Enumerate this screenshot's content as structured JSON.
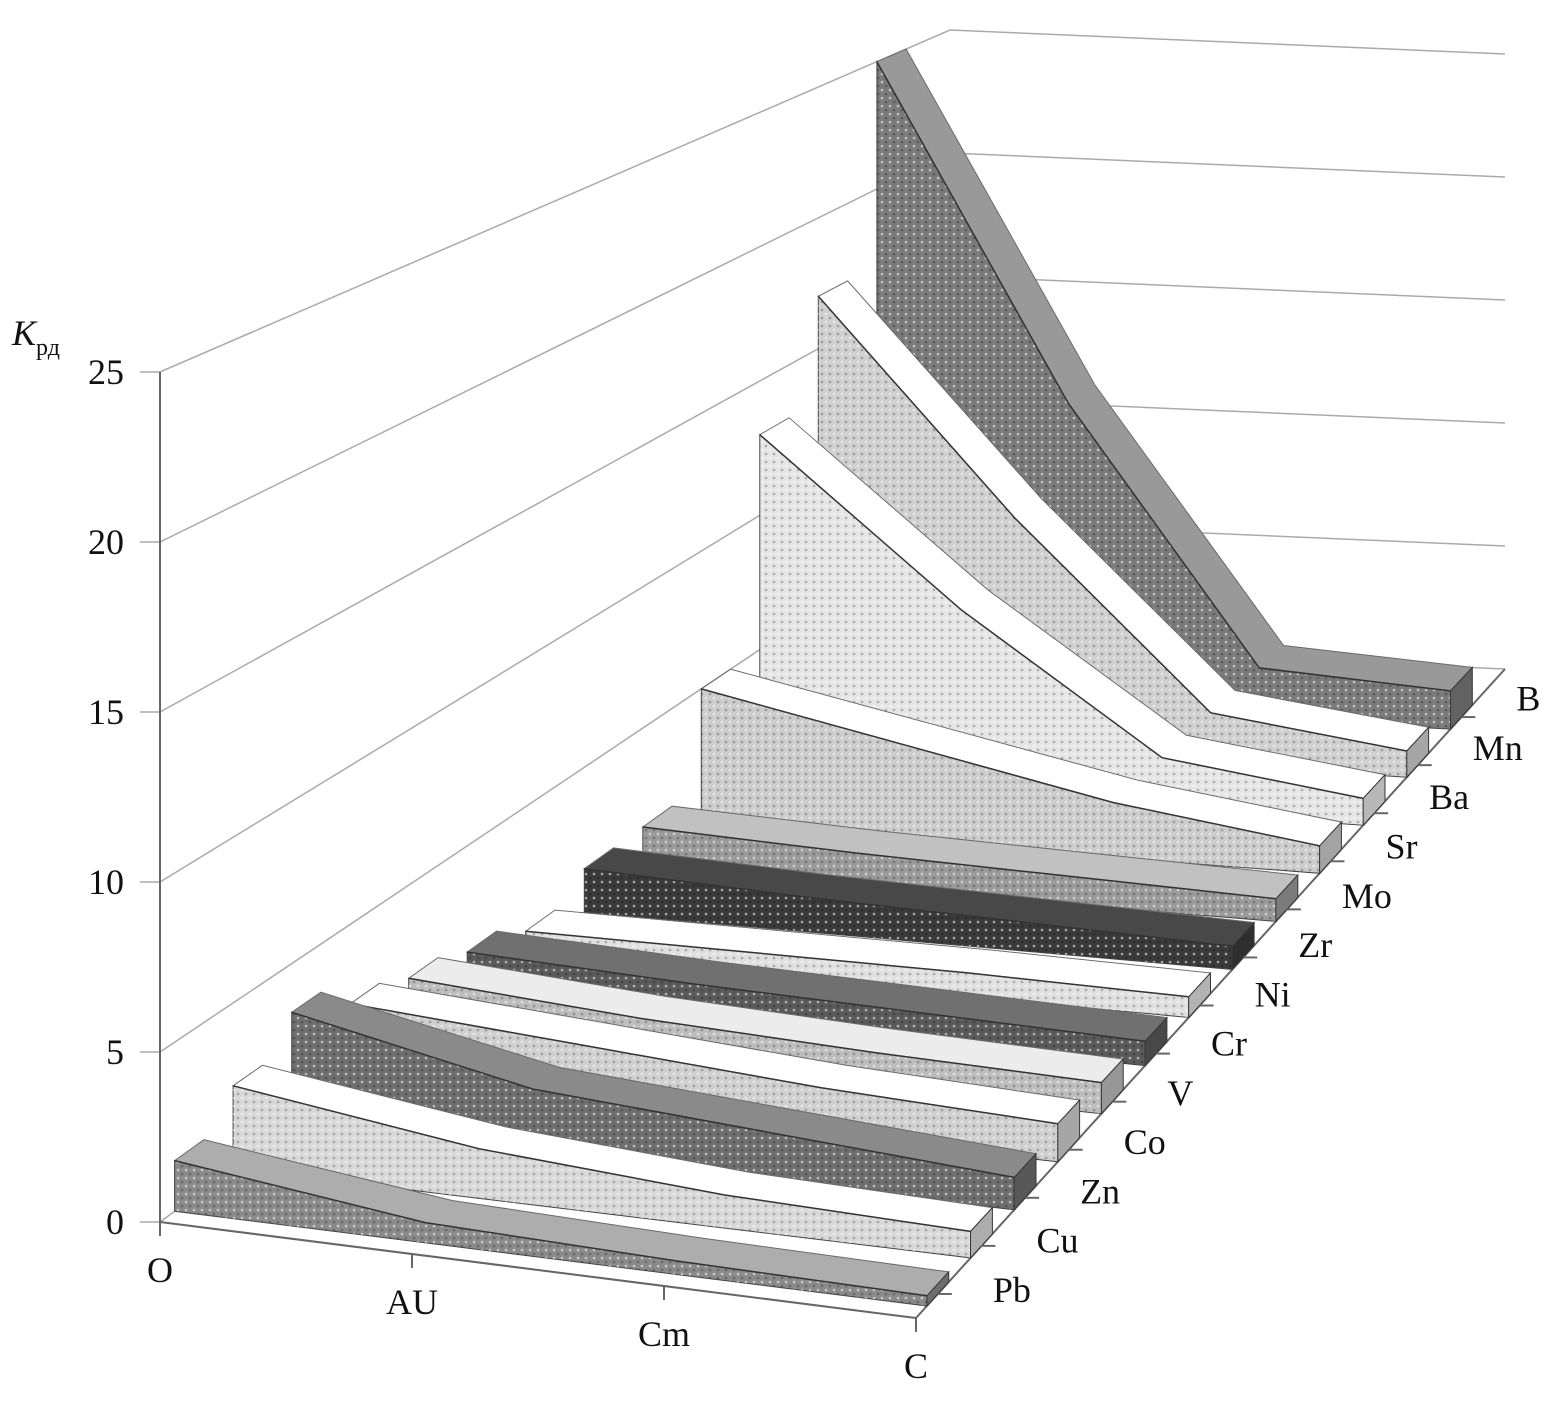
{
  "chart_data": {
    "type": "ribbon3d",
    "y_label": {
      "main": "K",
      "sub": "рд"
    },
    "categories": [
      "O",
      "AU",
      "Cm",
      "C"
    ],
    "ylim": [
      0,
      25
    ],
    "yticks": [
      0,
      5,
      10,
      15,
      20,
      25
    ],
    "grid": true,
    "series": [
      {
        "name": "Pb",
        "color": "#8a8a8a",
        "values": [
          1.5,
          0.6,
          0.4,
          0.3
        ]
      },
      {
        "name": "Cu",
        "color": "#d8d8d8",
        "values": [
          2.5,
          1.5,
          1.0,
          0.8
        ]
      },
      {
        "name": "Zn",
        "color": "#6e6e6e",
        "values": [
          3.5,
          2.0,
          1.5,
          1.0
        ]
      },
      {
        "name": "Co",
        "color": "#cfcfcf",
        "values": [
          2.5,
          2.0,
          1.5,
          1.2
        ]
      },
      {
        "name": "V",
        "color": "#bdbdbd",
        "values": [
          2.0,
          1.5,
          1.2,
          1.0
        ]
      },
      {
        "name": "Cr",
        "color": "#5a5a5a",
        "values": [
          1.5,
          1.2,
          1.0,
          0.8
        ]
      },
      {
        "name": "Ni",
        "color": "#e0e0e0",
        "values": [
          0.8,
          0.8,
          0.8,
          0.7
        ]
      },
      {
        "name": "Zr",
        "color": "#3a3a3a",
        "values": [
          1.5,
          1.2,
          1.0,
          0.8
        ]
      },
      {
        "name": "Mo",
        "color": "#9a9a9a",
        "values": [
          1.5,
          1.2,
          1.0,
          0.8
        ]
      },
      {
        "name": "Sr",
        "color": "#cccccc",
        "values": [
          5.0,
          3.5,
          2.0,
          1.0
        ]
      },
      {
        "name": "Ba",
        "color": "#e6e6e6",
        "values": [
          13.0,
          7.0,
          2.0,
          1.0
        ]
      },
      {
        "name": "Mn",
        "color": "#d0d0d0",
        "values": [
          17.0,
          9.0,
          2.0,
          1.0
        ]
      },
      {
        "name": "B",
        "color": "#7a7a7a",
        "values": [
          25.0,
          12.0,
          2.0,
          1.5
        ]
      }
    ]
  }
}
